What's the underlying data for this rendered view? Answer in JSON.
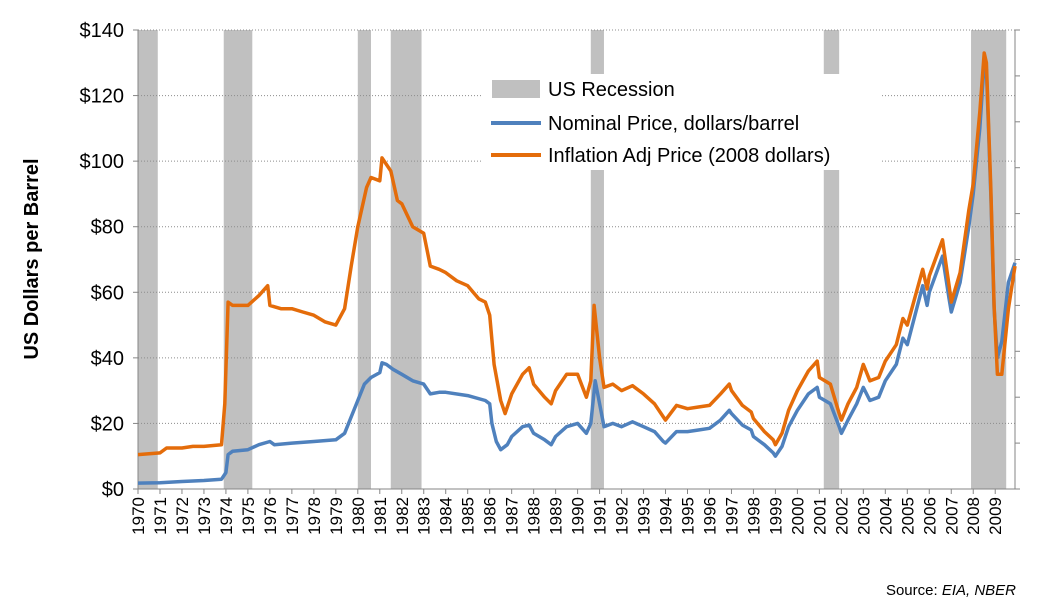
{
  "chart_data": {
    "type": "line",
    "title": "",
    "xlabel": "",
    "ylabel": "US Dollars per Barrel",
    "xlim": [
      1970,
      2009.9
    ],
    "ylim": [
      0,
      140
    ],
    "y_ticks": [
      0,
      20,
      40,
      60,
      80,
      100,
      120,
      140
    ],
    "y_tick_labels": [
      "$0",
      "$20",
      "$40",
      "$60",
      "$80",
      "$100",
      "$120",
      "$140"
    ],
    "x_tick_labels": [
      "1970",
      "1971",
      "1972",
      "1973",
      "1974",
      "1975",
      "1976",
      "1977",
      "1978",
      "1979",
      "1980",
      "1981",
      "1982",
      "1983",
      "1984",
      "1985",
      "1986",
      "1987",
      "1988",
      "1989",
      "1990",
      "1991",
      "1992",
      "1993",
      "1994",
      "1995",
      "1996",
      "1997",
      "1998",
      "1999",
      "2000",
      "2001",
      "2002",
      "2003",
      "2004",
      "2005",
      "2006",
      "2007",
      "2008",
      "2009"
    ],
    "grid": "horizontal dotted",
    "legend_position": "top-center",
    "recessions": [
      {
        "start": 1970.0,
        "end": 1970.9
      },
      {
        "start": 1973.9,
        "end": 1975.2
      },
      {
        "start": 1980.0,
        "end": 1980.6
      },
      {
        "start": 1981.5,
        "end": 1982.9
      },
      {
        "start": 1990.6,
        "end": 1991.2
      },
      {
        "start": 2001.2,
        "end": 2001.9
      },
      {
        "start": 2007.9,
        "end": 2009.5
      }
    ],
    "series": [
      {
        "name": "US Recession",
        "kind": "band",
        "color": "#c0c0c0"
      },
      {
        "name": "Nominal Price, dollars/barrel",
        "kind": "line",
        "color": "#4f81bd",
        "points": [
          [
            1970.0,
            1.8
          ],
          [
            1971.0,
            1.9
          ],
          [
            1972.0,
            2.3
          ],
          [
            1973.0,
            2.6
          ],
          [
            1973.8,
            3.0
          ],
          [
            1974.0,
            5.0
          ],
          [
            1974.1,
            10.5
          ],
          [
            1974.3,
            11.5
          ],
          [
            1975.0,
            12.0
          ],
          [
            1975.5,
            13.5
          ],
          [
            1976.0,
            14.5
          ],
          [
            1976.2,
            13.5
          ],
          [
            1977.0,
            14.0
          ],
          [
            1978.0,
            14.5
          ],
          [
            1979.0,
            15.0
          ],
          [
            1979.4,
            17.0
          ],
          [
            1979.7,
            22.0
          ],
          [
            1980.0,
            27.0
          ],
          [
            1980.3,
            32.0
          ],
          [
            1980.6,
            34.0
          ],
          [
            1981.0,
            35.5
          ],
          [
            1981.1,
            38.5
          ],
          [
            1981.3,
            38.0
          ],
          [
            1981.6,
            36.5
          ],
          [
            1982.0,
            35.0
          ],
          [
            1982.5,
            33.0
          ],
          [
            1983.0,
            32.0
          ],
          [
            1983.3,
            29.0
          ],
          [
            1983.7,
            29.5
          ],
          [
            1984.0,
            29.5
          ],
          [
            1985.0,
            28.5
          ],
          [
            1985.8,
            27.0
          ],
          [
            1986.0,
            26.0
          ],
          [
            1986.1,
            20.0
          ],
          [
            1986.3,
            14.5
          ],
          [
            1986.5,
            12.0
          ],
          [
            1986.8,
            13.5
          ],
          [
            1987.0,
            16.0
          ],
          [
            1987.5,
            19.0
          ],
          [
            1987.8,
            19.5
          ],
          [
            1988.0,
            17.0
          ],
          [
            1988.5,
            15.0
          ],
          [
            1988.8,
            13.5
          ],
          [
            1989.0,
            16.0
          ],
          [
            1989.5,
            19.0
          ],
          [
            1990.0,
            20.0
          ],
          [
            1990.4,
            17.0
          ],
          [
            1990.6,
            20.0
          ],
          [
            1990.8,
            33.0
          ],
          [
            1991.0,
            26.0
          ],
          [
            1991.2,
            19.0
          ],
          [
            1991.6,
            20.0
          ],
          [
            1992.0,
            19.0
          ],
          [
            1992.5,
            20.5
          ],
          [
            1993.0,
            19.0
          ],
          [
            1993.5,
            17.5
          ],
          [
            1993.9,
            14.5
          ],
          [
            1994.0,
            14.0
          ],
          [
            1994.5,
            17.5
          ],
          [
            1995.0,
            17.5
          ],
          [
            1995.5,
            18.0
          ],
          [
            1996.0,
            18.5
          ],
          [
            1996.5,
            21.0
          ],
          [
            1996.9,
            24.0
          ],
          [
            1997.0,
            23.0
          ],
          [
            1997.5,
            19.5
          ],
          [
            1997.9,
            18.0
          ],
          [
            1998.0,
            16.0
          ],
          [
            1998.5,
            13.5
          ],
          [
            1998.9,
            11.0
          ],
          [
            1999.0,
            10.0
          ],
          [
            1999.3,
            13.0
          ],
          [
            1999.6,
            19.0
          ],
          [
            2000.0,
            24.0
          ],
          [
            2000.5,
            29.0
          ],
          [
            2000.9,
            31.0
          ],
          [
            2001.0,
            28.0
          ],
          [
            2001.5,
            26.0
          ],
          [
            2001.9,
            19.0
          ],
          [
            2002.0,
            17.0
          ],
          [
            2002.3,
            21.0
          ],
          [
            2002.7,
            26.0
          ],
          [
            2003.0,
            31.0
          ],
          [
            2003.3,
            27.0
          ],
          [
            2003.7,
            28.0
          ],
          [
            2004.0,
            33.0
          ],
          [
            2004.5,
            38.0
          ],
          [
            2004.8,
            46.0
          ],
          [
            2005.0,
            44.0
          ],
          [
            2005.7,
            62.0
          ],
          [
            2005.9,
            56.0
          ],
          [
            2006.0,
            60.0
          ],
          [
            2006.6,
            71.0
          ],
          [
            2006.9,
            58.0
          ],
          [
            2007.0,
            54.0
          ],
          [
            2007.4,
            63.0
          ],
          [
            2007.8,
            80.0
          ],
          [
            2008.0,
            90.0
          ],
          [
            2008.3,
            110.0
          ],
          [
            2008.5,
            130.0
          ],
          [
            2008.6,
            128.0
          ],
          [
            2008.8,
            90.0
          ],
          [
            2008.95,
            55.0
          ],
          [
            2009.1,
            40.0
          ],
          [
            2009.3,
            45.0
          ],
          [
            2009.6,
            63.0
          ],
          [
            2009.9,
            69.0
          ]
        ]
      },
      {
        "name": "Inflation Adj Price (2008 dollars)",
        "kind": "line",
        "color": "#e46c0a",
        "points": [
          [
            1970.0,
            10.5
          ],
          [
            1971.0,
            11.0
          ],
          [
            1971.3,
            12.5
          ],
          [
            1972.0,
            12.5
          ],
          [
            1972.5,
            13.0
          ],
          [
            1973.0,
            13.0
          ],
          [
            1973.8,
            13.5
          ],
          [
            1973.95,
            26.0
          ],
          [
            1974.1,
            57.0
          ],
          [
            1974.3,
            56.0
          ],
          [
            1975.0,
            56.0
          ],
          [
            1975.5,
            59.0
          ],
          [
            1975.9,
            62.0
          ],
          [
            1976.0,
            56.0
          ],
          [
            1976.5,
            55.0
          ],
          [
            1977.0,
            55.0
          ],
          [
            1977.5,
            54.0
          ],
          [
            1978.0,
            53.0
          ],
          [
            1978.5,
            51.0
          ],
          [
            1979.0,
            50.0
          ],
          [
            1979.4,
            55.0
          ],
          [
            1979.7,
            68.0
          ],
          [
            1980.0,
            80.0
          ],
          [
            1980.4,
            92.0
          ],
          [
            1980.6,
            95.0
          ],
          [
            1981.0,
            94.0
          ],
          [
            1981.1,
            101.0
          ],
          [
            1981.5,
            97.0
          ],
          [
            1981.8,
            88.0
          ],
          [
            1982.0,
            87.0
          ],
          [
            1982.5,
            80.0
          ],
          [
            1983.0,
            78.0
          ],
          [
            1983.3,
            68.0
          ],
          [
            1983.7,
            67.0
          ],
          [
            1984.0,
            66.0
          ],
          [
            1984.5,
            63.5
          ],
          [
            1985.0,
            62.0
          ],
          [
            1985.5,
            58.0
          ],
          [
            1985.8,
            57.0
          ],
          [
            1986.0,
            53.0
          ],
          [
            1986.2,
            38.0
          ],
          [
            1986.5,
            27.0
          ],
          [
            1986.7,
            23.0
          ],
          [
            1987.0,
            29.0
          ],
          [
            1987.5,
            35.0
          ],
          [
            1987.8,
            37.0
          ],
          [
            1988.0,
            32.0
          ],
          [
            1988.5,
            28.0
          ],
          [
            1988.8,
            26.0
          ],
          [
            1989.0,
            30.0
          ],
          [
            1989.5,
            35.0
          ],
          [
            1990.0,
            35.0
          ],
          [
            1990.4,
            28.0
          ],
          [
            1990.6,
            33.0
          ],
          [
            1990.75,
            56.0
          ],
          [
            1991.0,
            40.0
          ],
          [
            1991.2,
            31.0
          ],
          [
            1991.6,
            32.0
          ],
          [
            1992.0,
            30.0
          ],
          [
            1992.5,
            31.5
          ],
          [
            1993.0,
            29.0
          ],
          [
            1993.5,
            26.0
          ],
          [
            1993.9,
            22.0
          ],
          [
            1994.0,
            21.0
          ],
          [
            1994.5,
            25.5
          ],
          [
            1995.0,
            24.5
          ],
          [
            1995.5,
            25.0
          ],
          [
            1996.0,
            25.5
          ],
          [
            1996.5,
            29.0
          ],
          [
            1996.9,
            32.0
          ],
          [
            1997.0,
            30.0
          ],
          [
            1997.5,
            25.5
          ],
          [
            1997.9,
            23.5
          ],
          [
            1998.0,
            21.5
          ],
          [
            1998.5,
            17.5
          ],
          [
            1998.9,
            15.0
          ],
          [
            1999.0,
            13.5
          ],
          [
            1999.3,
            17.0
          ],
          [
            1999.6,
            24.0
          ],
          [
            2000.0,
            30.0
          ],
          [
            2000.5,
            36.0
          ],
          [
            2000.9,
            39.0
          ],
          [
            2001.0,
            34.0
          ],
          [
            2001.5,
            32.0
          ],
          [
            2001.9,
            23.0
          ],
          [
            2002.0,
            21.0
          ],
          [
            2002.3,
            26.0
          ],
          [
            2002.7,
            31.0
          ],
          [
            2003.0,
            38.0
          ],
          [
            2003.3,
            33.0
          ],
          [
            2003.7,
            34.0
          ],
          [
            2004.0,
            39.0
          ],
          [
            2004.5,
            44.0
          ],
          [
            2004.8,
            52.0
          ],
          [
            2005.0,
            50.0
          ],
          [
            2005.7,
            67.0
          ],
          [
            2005.9,
            61.0
          ],
          [
            2006.0,
            65.0
          ],
          [
            2006.6,
            76.0
          ],
          [
            2006.9,
            62.0
          ],
          [
            2007.0,
            57.0
          ],
          [
            2007.4,
            66.0
          ],
          [
            2007.8,
            85.0
          ],
          [
            2008.0,
            93.0
          ],
          [
            2008.3,
            115.0
          ],
          [
            2008.5,
            133.0
          ],
          [
            2008.6,
            130.0
          ],
          [
            2008.8,
            92.0
          ],
          [
            2008.95,
            56.0
          ],
          [
            2009.1,
            35.0
          ],
          [
            2009.3,
            35.0
          ],
          [
            2009.6,
            55.0
          ],
          [
            2009.9,
            68.0
          ]
        ]
      }
    ]
  },
  "source": {
    "prefix": "Source: ",
    "text": "EIA, NBER"
  }
}
